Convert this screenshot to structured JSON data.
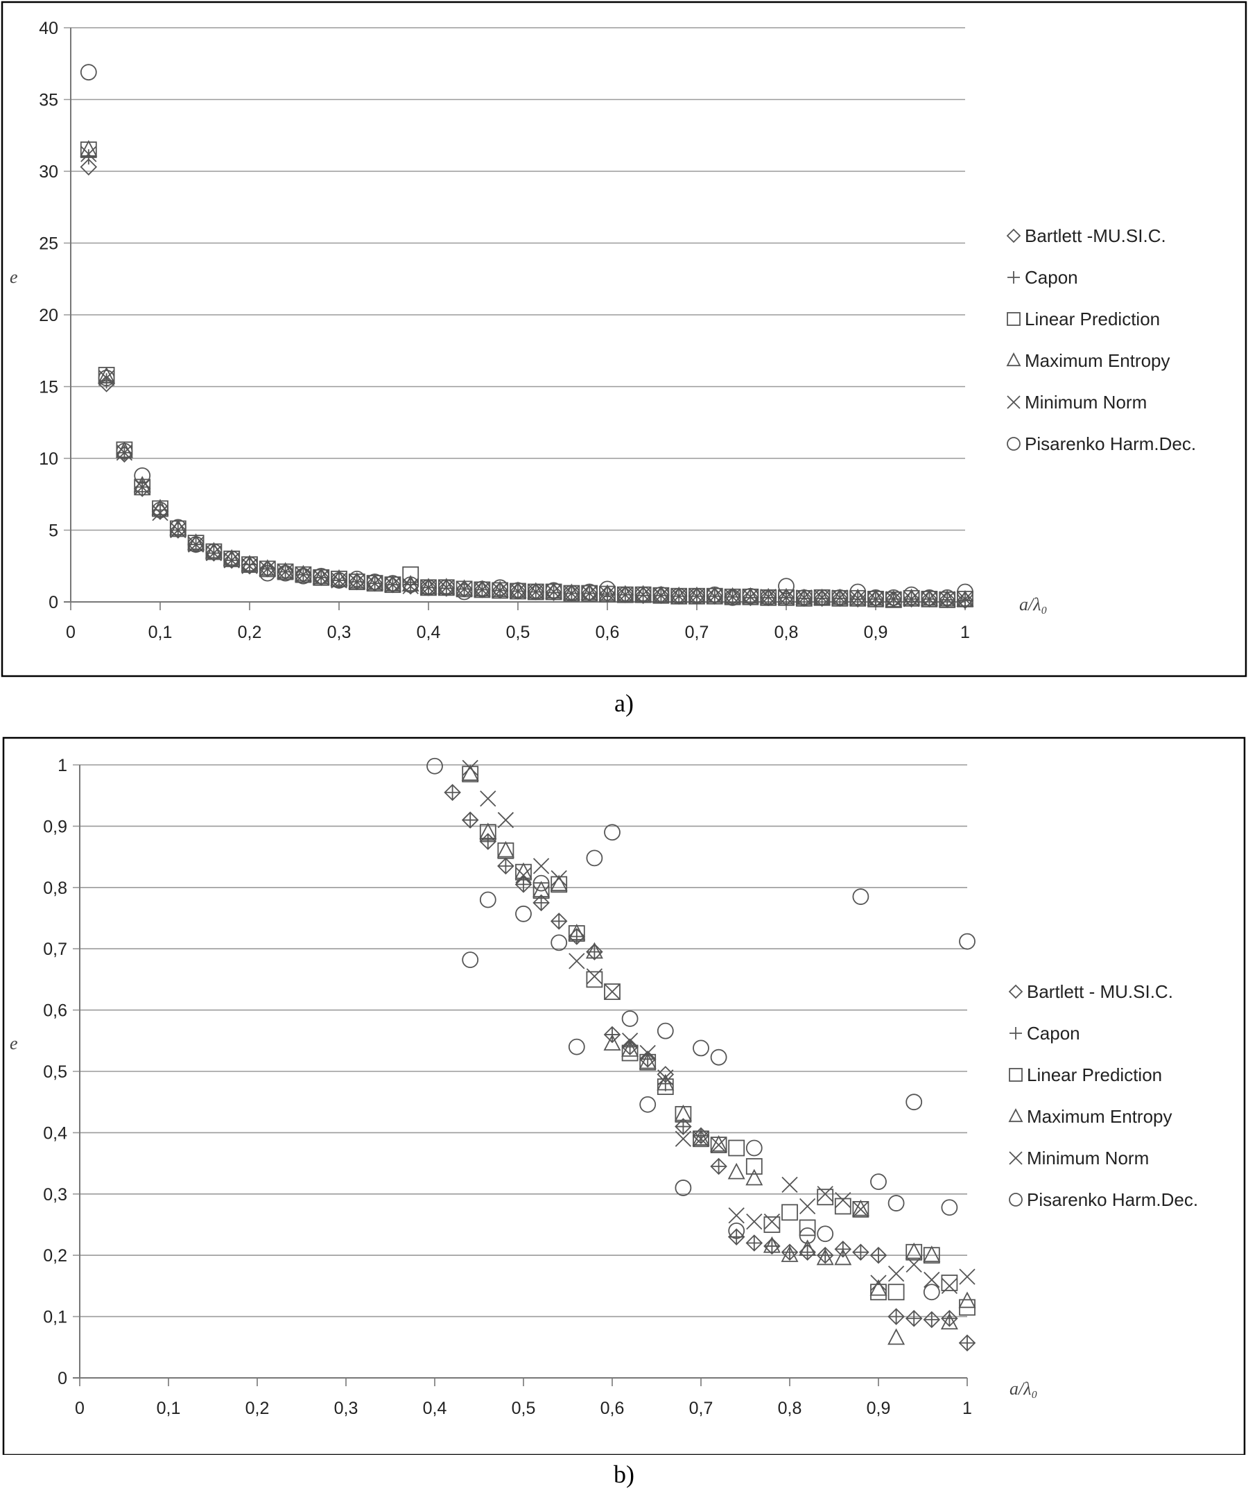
{
  "chart_data": [
    {
      "type": "scatter",
      "title": "",
      "xlabel": "a/λ₀",
      "ylabel": "e",
      "xlim": [
        0,
        1
      ],
      "ylim": [
        0,
        40
      ],
      "x_ticks": [
        "0",
        "0,1",
        "0,2",
        "0,3",
        "0,4",
        "0,5",
        "0,6",
        "0,7",
        "0,8",
        "0,9",
        "1"
      ],
      "y_ticks": [
        "0",
        "5",
        "10",
        "15",
        "20",
        "25",
        "30",
        "35",
        "40"
      ],
      "grid": "horizontal",
      "legend_position": "right",
      "caption": "a)",
      "series": [
        {
          "name": "Bartlett -MU.SI.C.",
          "marker": "diamond",
          "x": [
            0.02,
            0.04,
            0.06,
            0.08,
            0.1,
            0.12,
            0.14,
            0.16,
            0.18,
            0.2,
            0.22,
            0.24,
            0.26,
            0.28,
            0.3,
            0.32,
            0.34,
            0.36,
            0.38,
            0.4,
            0.42,
            0.44,
            0.46,
            0.48,
            0.5,
            0.52,
            0.54,
            0.56,
            0.58,
            0.6,
            0.62,
            0.64,
            0.66,
            0.68,
            0.7,
            0.72,
            0.74,
            0.76,
            0.78,
            0.8,
            0.82,
            0.84,
            0.86,
            0.88,
            0.9,
            0.92,
            0.94,
            0.96,
            0.98,
            1.0
          ],
          "y": [
            30.3,
            15.2,
            10.3,
            7.9,
            6.3,
            5.0,
            4.0,
            3.4,
            2.9,
            2.5,
            2.3,
            2.1,
            1.9,
            1.7,
            1.5,
            1.4,
            1.3,
            1.2,
            1.1,
            1.0,
            0.95,
            0.9,
            0.85,
            0.8,
            0.75,
            0.7,
            0.65,
            0.6,
            0.6,
            0.55,
            0.5,
            0.45,
            0.45,
            0.4,
            0.4,
            0.4,
            0.35,
            0.3,
            0.3,
            0.3,
            0.25,
            0.25,
            0.25,
            0.2,
            0.2,
            0.2,
            0.2,
            0.2,
            0.15,
            0.1
          ]
        },
        {
          "name": "Capon",
          "marker": "plus",
          "x": [
            0.02,
            0.04,
            0.06,
            0.08,
            0.1,
            0.12,
            0.14,
            0.16,
            0.18,
            0.2,
            0.22,
            0.24,
            0.26,
            0.28,
            0.3,
            0.32,
            0.34,
            0.36,
            0.38,
            0.4,
            0.42,
            0.44,
            0.46,
            0.48,
            0.5,
            0.52,
            0.54,
            0.56,
            0.58,
            0.6,
            0.62,
            0.64,
            0.66,
            0.68,
            0.7,
            0.72,
            0.74,
            0.76,
            0.78,
            0.8,
            0.82,
            0.84,
            0.86,
            0.88,
            0.9,
            0.92,
            0.94,
            0.96,
            0.98,
            1.0
          ],
          "y": [
            31.0,
            15.4,
            10.4,
            8.0,
            6.4,
            5.0,
            4.0,
            3.4,
            2.9,
            2.6,
            2.3,
            2.1,
            1.9,
            1.7,
            1.5,
            1.4,
            1.3,
            1.2,
            1.2,
            1.0,
            0.95,
            0.9,
            0.85,
            0.8,
            0.75,
            0.7,
            0.65,
            0.6,
            0.6,
            0.55,
            0.5,
            0.45,
            0.45,
            0.4,
            0.4,
            0.4,
            0.35,
            0.3,
            0.3,
            0.3,
            0.25,
            0.25,
            0.25,
            0.2,
            0.2,
            0.2,
            0.2,
            0.2,
            0.15,
            0.1
          ]
        },
        {
          "name": "Linear Prediction",
          "marker": "square",
          "x": [
            0.02,
            0.04,
            0.06,
            0.08,
            0.1,
            0.12,
            0.14,
            0.16,
            0.18,
            0.2,
            0.22,
            0.24,
            0.26,
            0.28,
            0.3,
            0.32,
            0.34,
            0.36,
            0.38,
            0.4,
            0.42,
            0.44,
            0.46,
            0.48,
            0.5,
            0.52,
            0.54,
            0.56,
            0.58,
            0.6,
            0.62,
            0.64,
            0.66,
            0.68,
            0.7,
            0.72,
            0.74,
            0.76,
            0.78,
            0.8,
            0.82,
            0.84,
            0.86,
            0.88,
            0.9,
            0.92,
            0.94,
            0.96,
            0.98,
            1.0
          ],
          "y": [
            31.5,
            15.8,
            10.6,
            8.0,
            6.5,
            5.1,
            4.1,
            3.5,
            3.0,
            2.6,
            2.3,
            2.1,
            1.9,
            1.7,
            1.6,
            1.4,
            1.3,
            1.2,
            1.9,
            1.0,
            1.0,
            0.9,
            0.85,
            0.8,
            0.75,
            0.7,
            0.7,
            0.6,
            0.6,
            0.55,
            0.5,
            0.5,
            0.45,
            0.4,
            0.4,
            0.4,
            0.35,
            0.35,
            0.3,
            0.3,
            0.25,
            0.3,
            0.25,
            0.25,
            0.2,
            0.15,
            0.25,
            0.2,
            0.15,
            0.2
          ]
        },
        {
          "name": "Maximum Entropy",
          "marker": "triangle",
          "x": [
            0.02,
            0.04,
            0.06,
            0.08,
            0.1,
            0.12,
            0.14,
            0.16,
            0.18,
            0.2,
            0.22,
            0.24,
            0.26,
            0.28,
            0.3,
            0.32,
            0.34,
            0.36,
            0.38,
            0.4,
            0.42,
            0.44,
            0.46,
            0.48,
            0.5,
            0.52,
            0.54,
            0.56,
            0.58,
            0.6,
            0.62,
            0.64,
            0.66,
            0.68,
            0.7,
            0.72,
            0.74,
            0.76,
            0.78,
            0.8,
            0.82,
            0.84,
            0.86,
            0.88,
            0.9,
            0.92,
            0.94,
            0.96,
            0.98,
            1.0
          ],
          "y": [
            31.5,
            15.7,
            10.5,
            8.1,
            6.5,
            5.1,
            4.1,
            3.5,
            3.0,
            2.6,
            2.3,
            2.1,
            1.9,
            1.7,
            1.6,
            1.4,
            1.3,
            1.2,
            1.2,
            1.0,
            1.0,
            0.9,
            0.85,
            0.8,
            0.75,
            0.7,
            0.7,
            0.6,
            0.6,
            0.55,
            0.5,
            0.5,
            0.45,
            0.4,
            0.4,
            0.4,
            0.35,
            0.35,
            0.3,
            0.3,
            0.25,
            0.25,
            0.25,
            0.25,
            0.2,
            0.1,
            0.25,
            0.2,
            0.15,
            0.15
          ]
        },
        {
          "name": "Minimum Norm",
          "marker": "cross",
          "x": [
            0.02,
            0.04,
            0.06,
            0.08,
            0.1,
            0.12,
            0.14,
            0.16,
            0.18,
            0.2,
            0.22,
            0.24,
            0.26,
            0.28,
            0.3,
            0.32,
            0.34,
            0.36,
            0.38,
            0.4,
            0.42,
            0.44,
            0.46,
            0.48,
            0.5,
            0.52,
            0.54,
            0.56,
            0.58,
            0.6,
            0.62,
            0.64,
            0.66,
            0.68,
            0.7,
            0.72,
            0.74,
            0.76,
            0.78,
            0.8,
            0.82,
            0.84,
            0.86,
            0.88,
            0.9,
            0.92,
            0.94,
            0.96,
            0.98,
            1.0
          ],
          "y": [
            31.2,
            15.6,
            10.4,
            8.0,
            6.2,
            5.0,
            4.0,
            3.4,
            2.9,
            2.5,
            2.3,
            2.1,
            1.9,
            1.7,
            1.5,
            1.4,
            1.3,
            1.2,
            1.1,
            1.0,
            1.0,
            0.9,
            0.85,
            0.8,
            0.75,
            0.7,
            0.7,
            0.6,
            0.6,
            0.55,
            0.5,
            0.5,
            0.45,
            0.4,
            0.4,
            0.4,
            0.35,
            0.35,
            0.35,
            0.3,
            0.3,
            0.3,
            0.3,
            0.25,
            0.2,
            0.2,
            0.2,
            0.2,
            0.2,
            0.2
          ]
        },
        {
          "name": "Pisarenko Harm.Dec.",
          "marker": "circle",
          "x": [
            0.02,
            0.04,
            0.06,
            0.08,
            0.1,
            0.12,
            0.14,
            0.16,
            0.18,
            0.2,
            0.22,
            0.24,
            0.26,
            0.28,
            0.3,
            0.32,
            0.34,
            0.36,
            0.38,
            0.4,
            0.42,
            0.44,
            0.46,
            0.48,
            0.5,
            0.52,
            0.54,
            0.56,
            0.58,
            0.6,
            0.62,
            0.64,
            0.66,
            0.68,
            0.7,
            0.72,
            0.74,
            0.76,
            0.78,
            0.8,
            0.82,
            0.84,
            0.86,
            0.88,
            0.9,
            0.92,
            0.94,
            0.96,
            0.98,
            1.0
          ],
          "y": [
            36.9,
            15.6,
            10.5,
            8.8,
            6.4,
            5.2,
            4.0,
            3.5,
            3.0,
            2.6,
            2.0,
            2.0,
            1.8,
            1.8,
            1.5,
            1.6,
            1.4,
            1.3,
            1.2,
            1.0,
            1.0,
            0.7,
            0.9,
            1.0,
            0.8,
            0.7,
            0.8,
            0.6,
            0.7,
            0.9,
            0.5,
            0.5,
            0.5,
            0.4,
            0.4,
            0.5,
            0.3,
            0.4,
            0.3,
            1.1,
            0.3,
            0.3,
            0.3,
            0.7,
            0.3,
            0.3,
            0.5,
            0.3,
            0.3,
            0.7
          ]
        }
      ]
    },
    {
      "type": "scatter",
      "title": "",
      "xlabel": "a/λ₀",
      "ylabel": "e",
      "xlim": [
        0,
        1
      ],
      "ylim": [
        0,
        1
      ],
      "x_ticks": [
        "0",
        "0,1",
        "0,2",
        "0,3",
        "0,4",
        "0,5",
        "0,6",
        "0,7",
        "0,8",
        "0,9",
        "1"
      ],
      "y_ticks": [
        "0",
        "0,1",
        "0,2",
        "0,3",
        "0,4",
        "0,5",
        "0,6",
        "0,7",
        "0,8",
        "0,9",
        "1"
      ],
      "grid": "horizontal",
      "legend_position": "right",
      "caption": "b)",
      "series": [
        {
          "name": "Bartlett - MU.SI.C.",
          "marker": "diamond",
          "x": [
            0.42,
            0.44,
            0.46,
            0.48,
            0.5,
            0.52,
            0.54,
            0.56,
            0.58,
            0.6,
            0.62,
            0.64,
            0.66,
            0.68,
            0.7,
            0.72,
            0.74,
            0.76,
            0.78,
            0.8,
            0.82,
            0.84,
            0.86,
            0.88,
            0.9,
            0.92,
            0.94,
            0.96,
            0.98,
            1.0
          ],
          "y": [
            0.955,
            0.91,
            0.875,
            0.835,
            0.805,
            0.775,
            0.745,
            0.72,
            0.695,
            0.56,
            0.54,
            0.52,
            0.495,
            0.41,
            0.395,
            0.345,
            0.23,
            0.22,
            0.215,
            0.205,
            0.205,
            0.2,
            0.21,
            0.205,
            0.2,
            0.1,
            0.097,
            0.095,
            0.097,
            0.057
          ]
        },
        {
          "name": "Capon",
          "marker": "plus",
          "x": [
            0.42,
            0.44,
            0.46,
            0.48,
            0.5,
            0.52,
            0.54,
            0.56,
            0.58,
            0.6,
            0.62,
            0.64,
            0.66,
            0.68,
            0.7,
            0.72,
            0.74,
            0.76,
            0.78,
            0.8,
            0.82,
            0.84,
            0.86,
            0.88,
            0.9,
            0.92,
            0.94,
            0.96,
            0.98,
            1.0
          ],
          "y": [
            0.955,
            0.91,
            0.875,
            0.835,
            0.805,
            0.775,
            0.745,
            0.72,
            0.695,
            0.56,
            0.54,
            0.52,
            0.48,
            0.41,
            0.395,
            0.345,
            0.23,
            0.22,
            0.215,
            0.205,
            0.205,
            0.2,
            0.21,
            0.205,
            0.2,
            0.1,
            0.097,
            0.095,
            0.097,
            0.057
          ]
        },
        {
          "name": "Linear Prediction",
          "marker": "square",
          "x": [
            0.44,
            0.46,
            0.48,
            0.5,
            0.52,
            0.54,
            0.56,
            0.58,
            0.6,
            0.62,
            0.64,
            0.66,
            0.68,
            0.7,
            0.72,
            0.74,
            0.76,
            0.78,
            0.8,
            0.82,
            0.84,
            0.86,
            0.88,
            0.9,
            0.92,
            0.94,
            0.96,
            0.98,
            1.0
          ],
          "y": [
            0.985,
            0.89,
            0.86,
            0.825,
            0.795,
            0.805,
            0.725,
            0.65,
            0.63,
            0.53,
            0.515,
            0.475,
            0.43,
            0.39,
            0.38,
            0.375,
            0.345,
            0.25,
            0.27,
            0.245,
            0.295,
            0.28,
            0.275,
            0.14,
            0.14,
            0.205,
            0.2,
            0.155,
            0.115
          ]
        },
        {
          "name": "Maximum Entropy",
          "marker": "triangle",
          "x": [
            0.44,
            0.46,
            0.48,
            0.5,
            0.52,
            0.54,
            0.56,
            0.58,
            0.6,
            0.62,
            0.64,
            0.66,
            0.68,
            0.7,
            0.72,
            0.74,
            0.76,
            0.78,
            0.8,
            0.82,
            0.84,
            0.86,
            0.88,
            0.9,
            0.92,
            0.94,
            0.96,
            0.98,
            1.0
          ],
          "y": [
            0.985,
            0.89,
            0.86,
            0.825,
            0.795,
            0.805,
            0.725,
            0.695,
            0.545,
            0.535,
            0.515,
            0.48,
            0.43,
            0.39,
            0.38,
            0.335,
            0.325,
            0.215,
            0.2,
            0.21,
            0.195,
            0.195,
            0.275,
            0.145,
            0.065,
            0.205,
            0.2,
            0.09,
            0.125
          ]
        },
        {
          "name": "Minimum Norm",
          "marker": "cross",
          "x": [
            0.44,
            0.46,
            0.48,
            0.5,
            0.52,
            0.54,
            0.56,
            0.58,
            0.6,
            0.62,
            0.64,
            0.66,
            0.68,
            0.7,
            0.72,
            0.74,
            0.76,
            0.78,
            0.8,
            0.82,
            0.84,
            0.86,
            0.88,
            0.9,
            0.92,
            0.94,
            0.96,
            0.98,
            1.0
          ],
          "y": [
            0.995,
            0.945,
            0.91,
            0.82,
            0.835,
            0.815,
            0.68,
            0.655,
            0.63,
            0.55,
            0.53,
            0.49,
            0.39,
            0.39,
            0.38,
            0.265,
            0.255,
            0.255,
            0.315,
            0.28,
            0.3,
            0.29,
            0.275,
            0.155,
            0.17,
            0.185,
            0.16,
            0.15,
            0.165
          ]
        },
        {
          "name": "Pisarenko Harm.Dec.",
          "marker": "circle",
          "x": [
            0.4,
            0.44,
            0.46,
            0.5,
            0.52,
            0.54,
            0.56,
            0.58,
            0.6,
            0.62,
            0.64,
            0.66,
            0.68,
            0.7,
            0.72,
            0.74,
            0.76,
            0.82,
            0.84,
            0.88,
            0.9,
            0.92,
            0.94,
            0.96,
            0.98,
            1.0
          ],
          "y": [
            0.998,
            0.682,
            0.78,
            0.757,
            0.807,
            0.71,
            0.54,
            0.848,
            0.89,
            0.586,
            0.446,
            0.566,
            0.31,
            0.538,
            0.523,
            0.24,
            0.375,
            0.232,
            0.235,
            0.785,
            0.32,
            0.285,
            0.45,
            0.14,
            0.278,
            0.712
          ]
        }
      ]
    }
  ],
  "captions": {
    "a": "a)",
    "b": "b)"
  }
}
